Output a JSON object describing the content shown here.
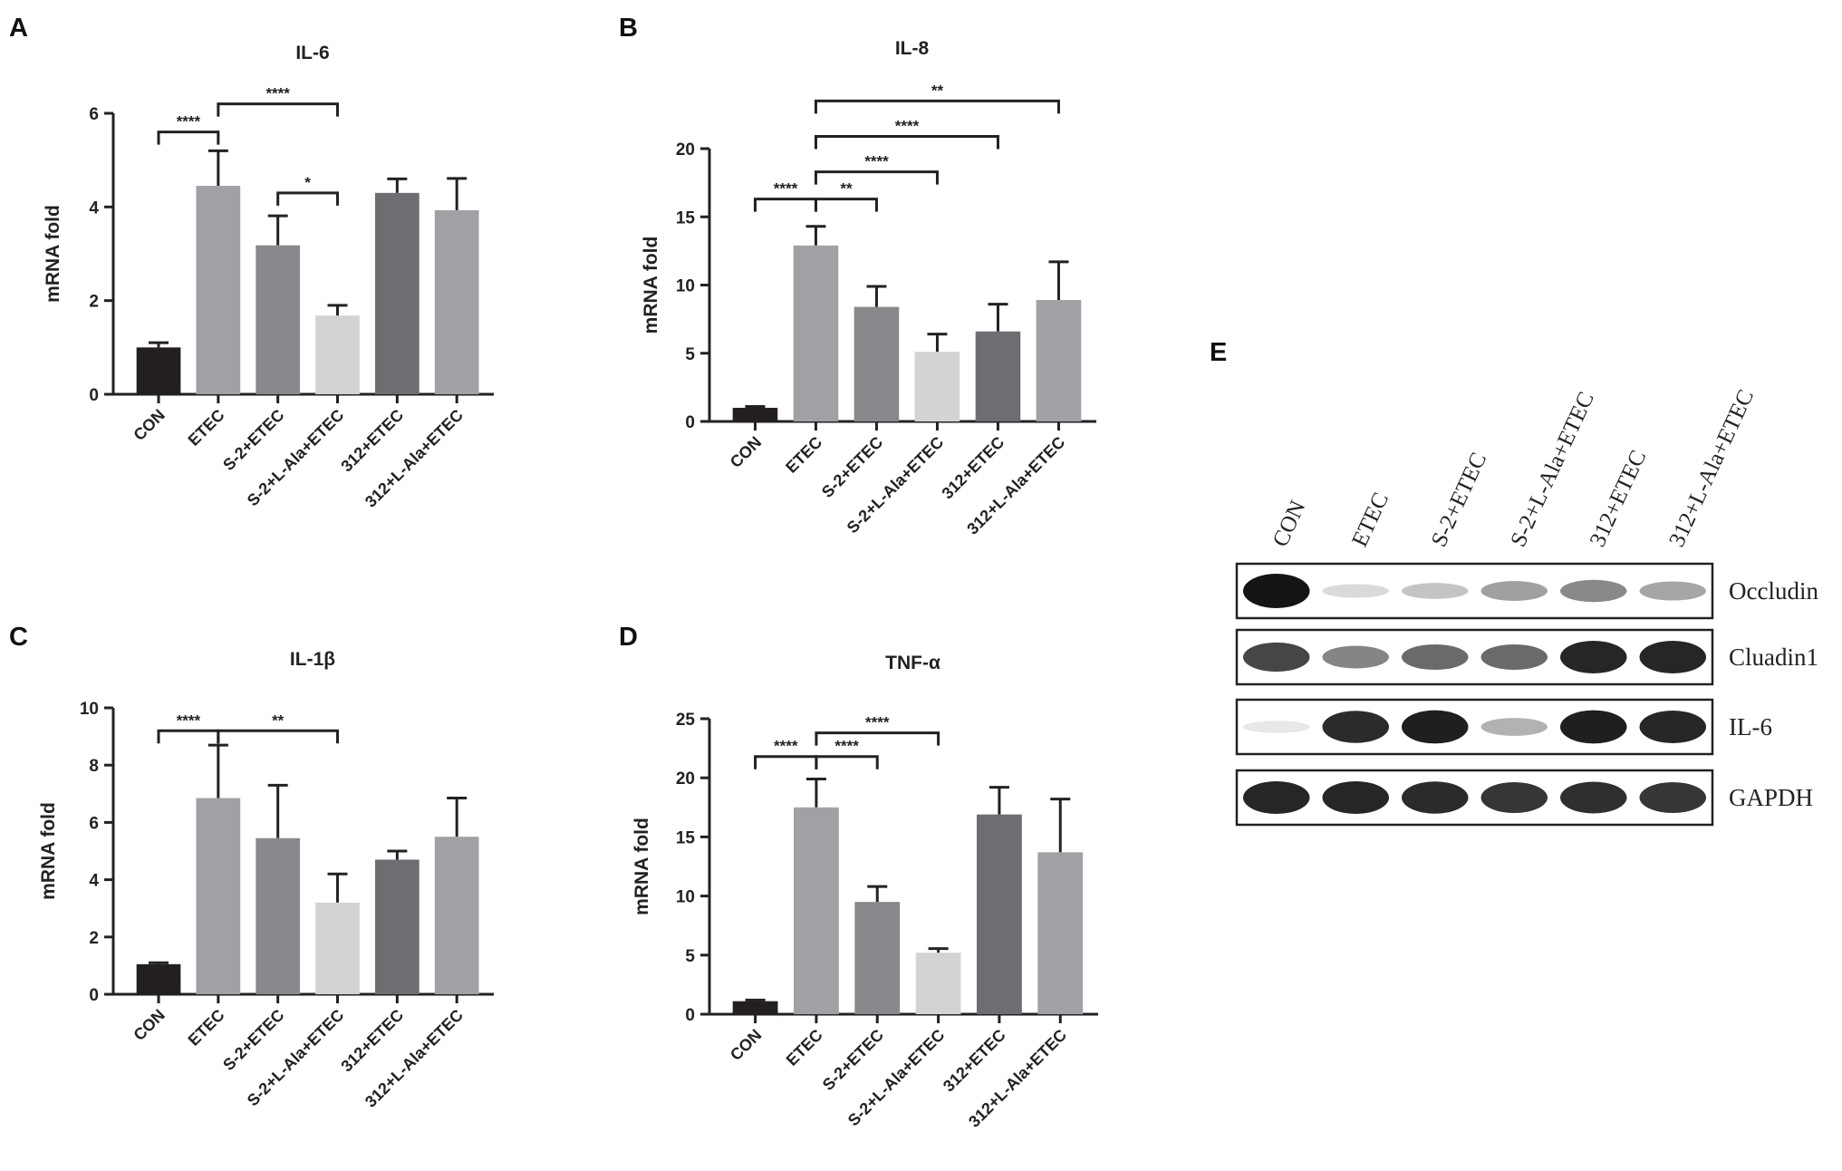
{
  "chart_data": [
    {
      "panel": "A",
      "type": "bar",
      "title": "IL-6",
      "ylabel": "mRNA fold",
      "ylim": [
        0,
        6
      ],
      "yticks": [
        0,
        2,
        4,
        6
      ],
      "categories": [
        "CON",
        "ETEC",
        "S-2+ETEC",
        "S-2+L-Ala+ETEC",
        "312+ETEC",
        "312+L-Ala+ETEC"
      ],
      "values": [
        1.0,
        4.45,
        3.18,
        1.68,
        4.3,
        3.93
      ],
      "errors": [
        0.1,
        0.75,
        0.63,
        0.22,
        0.3,
        0.68
      ],
      "colors": [
        "#231f20",
        "#a0a1a5",
        "#88898c",
        "#d1d3d4",
        "#6d6e71",
        "#a0a1a5"
      ],
      "significance": [
        {
          "from": 0,
          "to": 1,
          "y": 5.6,
          "label": "****"
        },
        {
          "from": 1,
          "to": 3,
          "y": 6.2,
          "label": "****"
        },
        {
          "from": 2,
          "to": 3,
          "y": 4.3,
          "label": "*"
        }
      ]
    },
    {
      "panel": "B",
      "type": "bar",
      "title": "IL-8",
      "ylabel": "mRNA fold",
      "ylim": [
        0,
        20
      ],
      "yticks": [
        0,
        5,
        10,
        15,
        20
      ],
      "categories": [
        "CON",
        "ETEC",
        "S-2+ETEC",
        "S-2+L-Ala+ETEC",
        "312+ETEC",
        "312+L-Ala+ETEC"
      ],
      "values": [
        1.0,
        12.9,
        8.4,
        5.1,
        6.6,
        8.9
      ],
      "errors": [
        0.1,
        1.4,
        1.5,
        1.3,
        2.0,
        2.8
      ],
      "colors": [
        "#231f20",
        "#a0a1a5",
        "#88898c",
        "#d1d3d4",
        "#6d6e71",
        "#a0a1a5"
      ],
      "significance": [
        {
          "from": 0,
          "to": 1,
          "y": 16.3,
          "label": "****"
        },
        {
          "from": 1,
          "to": 2,
          "y": 16.3,
          "label": "**"
        },
        {
          "from": 1,
          "to": 3,
          "y": 18.3,
          "label": "****"
        },
        {
          "from": 1,
          "to": 4,
          "y": 20.9,
          "label": "****"
        },
        {
          "from": 1,
          "to": 5,
          "y": 23.5,
          "label": "**"
        }
      ]
    },
    {
      "panel": "C",
      "type": "bar",
      "title": "IL-1β",
      "ylabel": "mRNA fold",
      "ylim": [
        0,
        10
      ],
      "yticks": [
        0,
        2,
        4,
        6,
        8,
        10
      ],
      "categories": [
        "CON",
        "ETEC",
        "S-2+ETEC",
        "S-2+L-Ala+ETEC",
        "312+ETEC",
        "312+L-Ala+ETEC"
      ],
      "values": [
        1.05,
        6.85,
        5.45,
        3.2,
        4.7,
        5.5
      ],
      "errors": [
        0.05,
        1.85,
        1.85,
        1.0,
        0.3,
        1.35
      ],
      "colors": [
        "#231f20",
        "#a0a1a5",
        "#88898c",
        "#d1d3d4",
        "#6d6e71",
        "#a0a1a5"
      ],
      "significance": [
        {
          "from": 0,
          "to": 1,
          "y": 9.2,
          "label": "****"
        },
        {
          "from": 1,
          "to": 3,
          "y": 9.2,
          "label": "**"
        }
      ]
    },
    {
      "panel": "D",
      "type": "bar",
      "title": "TNF-α",
      "ylabel": "mRNA fold",
      "ylim": [
        0,
        25
      ],
      "yticks": [
        0,
        5,
        10,
        15,
        20,
        25
      ],
      "categories": [
        "CON",
        "ETEC",
        "S-2+ETEC",
        "S-2+L-Ala+ETEC",
        "312+ETEC",
        "312+L-Ala+ETEC"
      ],
      "values": [
        1.1,
        17.5,
        9.5,
        5.2,
        16.9,
        13.7
      ],
      "errors": [
        0.1,
        2.4,
        1.3,
        0.35,
        2.3,
        4.5
      ],
      "colors": [
        "#231f20",
        "#a0a1a5",
        "#88898c",
        "#d1d3d4",
        "#6d6e71",
        "#a0a1a5"
      ],
      "significance": [
        {
          "from": 0,
          "to": 1,
          "y": 21.8,
          "label": "****"
        },
        {
          "from": 1,
          "to": 2,
          "y": 21.8,
          "label": "****"
        },
        {
          "from": 1,
          "to": 3,
          "y": 23.8,
          "label": "****"
        }
      ]
    }
  ],
  "western_blot": {
    "panel": "E",
    "lanes": [
      "CON",
      "ETEC",
      "S-2+ETEC",
      "S-2+L-Ala+ETEC",
      "312+ETEC",
      "312+L-Ala+ETEC"
    ],
    "rows": [
      {
        "protein": "Occludin",
        "intensities": [
          1.0,
          0.12,
          0.22,
          0.38,
          0.48,
          0.35
        ]
      },
      {
        "protein": "Cluadin1",
        "intensities": [
          0.78,
          0.5,
          0.62,
          0.62,
          0.92,
          0.92
        ]
      },
      {
        "protein": "IL-6",
        "intensities": [
          0.06,
          0.9,
          0.95,
          0.3,
          0.95,
          0.92
        ]
      },
      {
        "protein": "GAPDH",
        "intensities": [
          0.92,
          0.92,
          0.9,
          0.85,
          0.88,
          0.85
        ]
      }
    ]
  }
}
